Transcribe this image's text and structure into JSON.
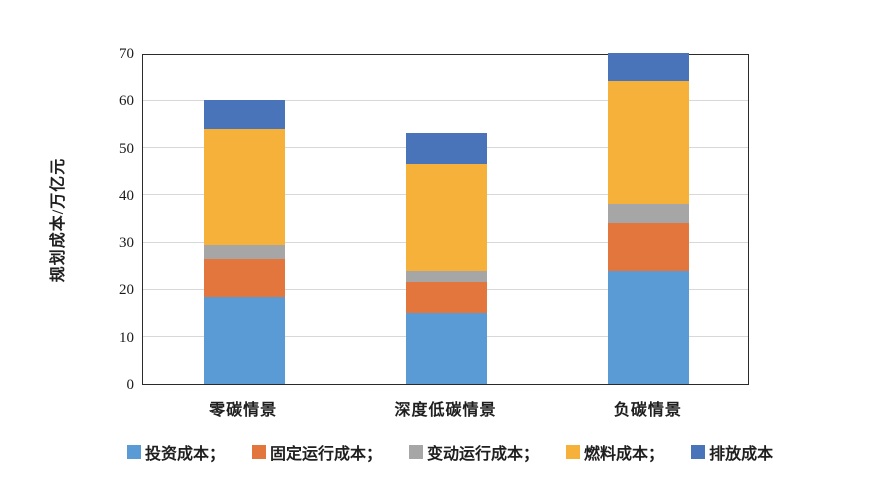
{
  "chart_data": {
    "type": "bar",
    "subtype": "stacked-vertical",
    "title": "",
    "xlabel": "",
    "ylabel": "规划成本/万亿元",
    "ylim": [
      0,
      70
    ],
    "y_ticks": [
      0,
      10,
      20,
      30,
      40,
      50,
      60,
      70
    ],
    "grid": "horizontal",
    "legend_position": "bottom",
    "categories": [
      "零碳情景",
      "深度低碳情景",
      "负碳情景"
    ],
    "series": [
      {
        "name": "投资成本",
        "legend_label": "投资成本；",
        "color": "#5b9bd5",
        "values": [
          18.5,
          15.0,
          24.0
        ]
      },
      {
        "name": "固定运行成本",
        "legend_label": "固定运行成本；",
        "color": "#e2763c",
        "values": [
          8.0,
          6.5,
          10.0
        ]
      },
      {
        "name": "变动运行成本",
        "legend_label": "变动运行成本；",
        "color": "#a6a6a6",
        "values": [
          3.0,
          2.5,
          4.0
        ]
      },
      {
        "name": "燃料成本",
        "legend_label": "燃料成本；",
        "color": "#f5b13a",
        "values": [
          24.5,
          22.5,
          26.0
        ]
      },
      {
        "name": "排放成本",
        "legend_label": "排放成本",
        "color": "#4a74b9",
        "values": [
          6.0,
          6.5,
          6.0
        ]
      }
    ],
    "stack_totals": [
      60,
      53,
      70
    ],
    "colors": {
      "gridline": "#d8d8d8",
      "plot_border": "#2b2b2b",
      "text": "#1f1f1f",
      "background": "#ffffff"
    }
  }
}
